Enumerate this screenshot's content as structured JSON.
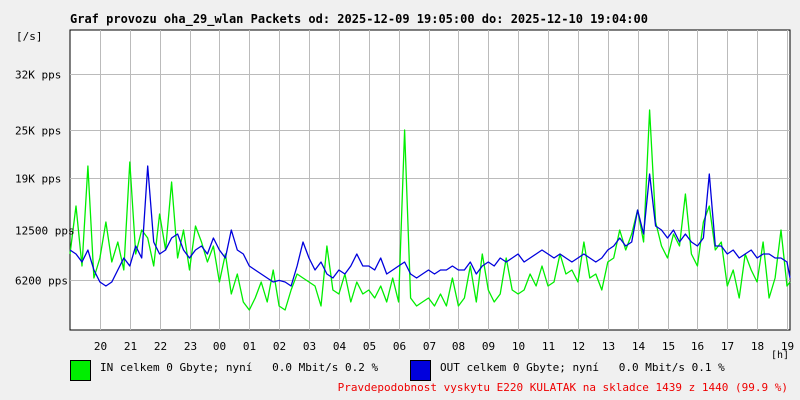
{
  "colors": {
    "background": "#f0f0f0",
    "plot_bg": "#ffffff",
    "grid": "#bbbbbb",
    "in_series": "#00ee00",
    "out_series": "#0000dd",
    "footer_text": "#ee0000"
  },
  "chart_data": {
    "type": "line",
    "title": "Graf provozu oha_29_wlan Packets od: 2025-12-09 19:05:00 do: 2025-12-10 19:04:00",
    "y_unit": "[/s]",
    "x_unit": "[h]",
    "xlim": [
      19.0,
      43.1
    ],
    "ylim": [
      0,
      37500
    ],
    "grid": true,
    "y_ticks": [
      {
        "value": 6200,
        "label": "6200 pps"
      },
      {
        "value": 12500,
        "label": "12500 pps"
      },
      {
        "value": 19000,
        "label": "19K pps"
      },
      {
        "value": 25000,
        "label": "25K pps"
      },
      {
        "value": 32000,
        "label": "32K pps"
      }
    ],
    "x_ticks": [
      {
        "value": 20,
        "label": "20"
      },
      {
        "value": 21,
        "label": "21"
      },
      {
        "value": 22,
        "label": "22"
      },
      {
        "value": 23,
        "label": "23"
      },
      {
        "value": 24,
        "label": "00"
      },
      {
        "value": 25,
        "label": "01"
      },
      {
        "value": 26,
        "label": "02"
      },
      {
        "value": 27,
        "label": "03"
      },
      {
        "value": 28,
        "label": "04"
      },
      {
        "value": 29,
        "label": "05"
      },
      {
        "value": 30,
        "label": "06"
      },
      {
        "value": 31,
        "label": "07"
      },
      {
        "value": 32,
        "label": "08"
      },
      {
        "value": 33,
        "label": "09"
      },
      {
        "value": 34,
        "label": "10"
      },
      {
        "value": 35,
        "label": "11"
      },
      {
        "value": 36,
        "label": "12"
      },
      {
        "value": 37,
        "label": "13"
      },
      {
        "value": 38,
        "label": "14"
      },
      {
        "value": 39,
        "label": "15"
      },
      {
        "value": 40,
        "label": "16"
      },
      {
        "value": 41,
        "label": "17"
      },
      {
        "value": 42,
        "label": "18"
      },
      {
        "value": 43,
        "label": "19"
      }
    ],
    "series": [
      {
        "name": "IN",
        "color": "#00ee00",
        "x": [
          19.0,
          19.2,
          19.4,
          19.6,
          19.8,
          20.0,
          20.2,
          20.4,
          20.6,
          20.8,
          21.0,
          21.2,
          21.4,
          21.6,
          21.8,
          22.0,
          22.2,
          22.4,
          22.6,
          22.8,
          23.0,
          23.2,
          23.4,
          23.6,
          23.8,
          24.0,
          24.2,
          24.4,
          24.6,
          24.8,
          25.0,
          25.2,
          25.4,
          25.6,
          25.8,
          26.0,
          26.2,
          26.4,
          26.6,
          26.8,
          27.0,
          27.2,
          27.4,
          27.6,
          27.8,
          28.0,
          28.2,
          28.4,
          28.6,
          28.8,
          29.0,
          29.2,
          29.4,
          29.6,
          29.8,
          30.0,
          30.2,
          30.4,
          30.6,
          30.8,
          31.0,
          31.2,
          31.4,
          31.6,
          31.8,
          32.0,
          32.2,
          32.4,
          32.6,
          32.8,
          33.0,
          33.2,
          33.4,
          33.6,
          33.8,
          34.0,
          34.2,
          34.4,
          34.6,
          34.8,
          35.0,
          35.2,
          35.4,
          35.6,
          35.8,
          36.0,
          36.2,
          36.4,
          36.6,
          36.8,
          37.0,
          37.2,
          37.4,
          37.6,
          37.8,
          38.0,
          38.2,
          38.4,
          38.6,
          38.8,
          39.0,
          39.2,
          39.4,
          39.6,
          39.8,
          40.0,
          40.2,
          40.4,
          40.6,
          40.8,
          41.0,
          41.2,
          41.4,
          41.6,
          41.8,
          42.0,
          42.2,
          42.4,
          42.6,
          42.8,
          43.0,
          43.1
        ],
        "values": [
          9500,
          15500,
          8000,
          20500,
          6500,
          9000,
          13500,
          8500,
          11000,
          7500,
          21000,
          9500,
          12500,
          11500,
          8000,
          14500,
          10000,
          18500,
          9000,
          12500,
          7500,
          13000,
          11000,
          8500,
          10500,
          6000,
          9500,
          4500,
          7000,
          3500,
          2500,
          4000,
          6000,
          3500,
          7500,
          3000,
          2500,
          5000,
          7000,
          6500,
          6000,
          5500,
          3000,
          10500,
          5000,
          4500,
          7000,
          3500,
          6000,
          4500,
          5000,
          4000,
          5500,
          3500,
          6500,
          3500,
          25000,
          4000,
          3000,
          3500,
          4000,
          3000,
          4500,
          3000,
          6500,
          3000,
          4000,
          8000,
          3500,
          9500,
          5000,
          3500,
          4500,
          9000,
          5000,
          4500,
          5000,
          7000,
          5500,
          8000,
          5500,
          6000,
          9500,
          7000,
          7500,
          6000,
          11000,
          6500,
          7000,
          5000,
          8500,
          9000,
          12500,
          10000,
          12000,
          15000,
          11000,
          27500,
          13500,
          10500,
          9000,
          12000,
          10500,
          17000,
          9500,
          8000,
          13500,
          15500,
          10000,
          11000,
          5500,
          7500,
          4000,
          9500,
          7500,
          6000,
          11000,
          4000,
          6500,
          12500,
          5500,
          6000
        ]
      },
      {
        "name": "OUT",
        "color": "#0000dd",
        "x": [
          19.0,
          19.2,
          19.4,
          19.6,
          19.8,
          20.0,
          20.2,
          20.4,
          20.6,
          20.8,
          21.0,
          21.2,
          21.4,
          21.6,
          21.8,
          22.0,
          22.2,
          22.4,
          22.6,
          22.8,
          23.0,
          23.2,
          23.4,
          23.6,
          23.8,
          24.0,
          24.2,
          24.4,
          24.6,
          24.8,
          25.0,
          25.2,
          25.4,
          25.6,
          25.8,
          26.0,
          26.2,
          26.4,
          26.6,
          26.8,
          27.0,
          27.2,
          27.4,
          27.6,
          27.8,
          28.0,
          28.2,
          28.4,
          28.6,
          28.8,
          29.0,
          29.2,
          29.4,
          29.6,
          29.8,
          30.0,
          30.2,
          30.4,
          30.6,
          30.8,
          31.0,
          31.2,
          31.4,
          31.6,
          31.8,
          32.0,
          32.2,
          32.4,
          32.6,
          32.8,
          33.0,
          33.2,
          33.4,
          33.6,
          33.8,
          34.0,
          34.2,
          34.4,
          34.6,
          34.8,
          35.0,
          35.2,
          35.4,
          35.6,
          35.8,
          36.0,
          36.2,
          36.4,
          36.6,
          36.8,
          37.0,
          37.2,
          37.4,
          37.6,
          37.8,
          38.0,
          38.2,
          38.4,
          38.6,
          38.8,
          39.0,
          39.2,
          39.4,
          39.6,
          39.8,
          40.0,
          40.2,
          40.4,
          40.6,
          40.8,
          41.0,
          41.2,
          41.4,
          41.6,
          41.8,
          42.0,
          42.2,
          42.4,
          42.6,
          42.8,
          43.0,
          43.1
        ],
        "values": [
          10000,
          9500,
          8500,
          10000,
          7500,
          6000,
          5500,
          6000,
          7500,
          9000,
          8000,
          10500,
          9000,
          20500,
          11000,
          9500,
          10000,
          11500,
          12000,
          10000,
          9000,
          10000,
          10500,
          9500,
          11500,
          10000,
          9000,
          12500,
          10000,
          9500,
          8000,
          7500,
          7000,
          6500,
          6000,
          6200,
          6000,
          5500,
          8000,
          11000,
          9000,
          7500,
          8500,
          7000,
          6500,
          7500,
          7000,
          8000,
          9500,
          8000,
          8000,
          7500,
          9000,
          7000,
          7500,
          8000,
          8500,
          7000,
          6500,
          7000,
          7500,
          7000,
          7500,
          7500,
          8000,
          7500,
          7500,
          8500,
          7000,
          8000,
          8500,
          8000,
          9000,
          8500,
          9000,
          9500,
          8500,
          9000,
          9500,
          10000,
          9500,
          9000,
          9500,
          9000,
          8500,
          9000,
          9500,
          9000,
          8500,
          9000,
          10000,
          10500,
          11500,
          10500,
          11000,
          15000,
          12000,
          19500,
          13000,
          12500,
          11500,
          12500,
          11000,
          12000,
          11000,
          10500,
          11500,
          19500,
          10500,
          10500,
          9500,
          10000,
          9000,
          9500,
          10000,
          9000,
          9500,
          9500,
          9000,
          9000,
          8500,
          6500
        ]
      }
    ]
  },
  "legend": {
    "in_label": "IN celkem 0 Gbyte; nyní   0.0 Mbit/s 0.2 %",
    "out_label": "OUT celkem 0 Gbyte; nyní   0.0 Mbit/s 0.1 %"
  },
  "footer": {
    "note": "Pravdepodobnost vyskytu E220 KULATAK na skladce 1439 z 1440 (99.9 %)"
  }
}
